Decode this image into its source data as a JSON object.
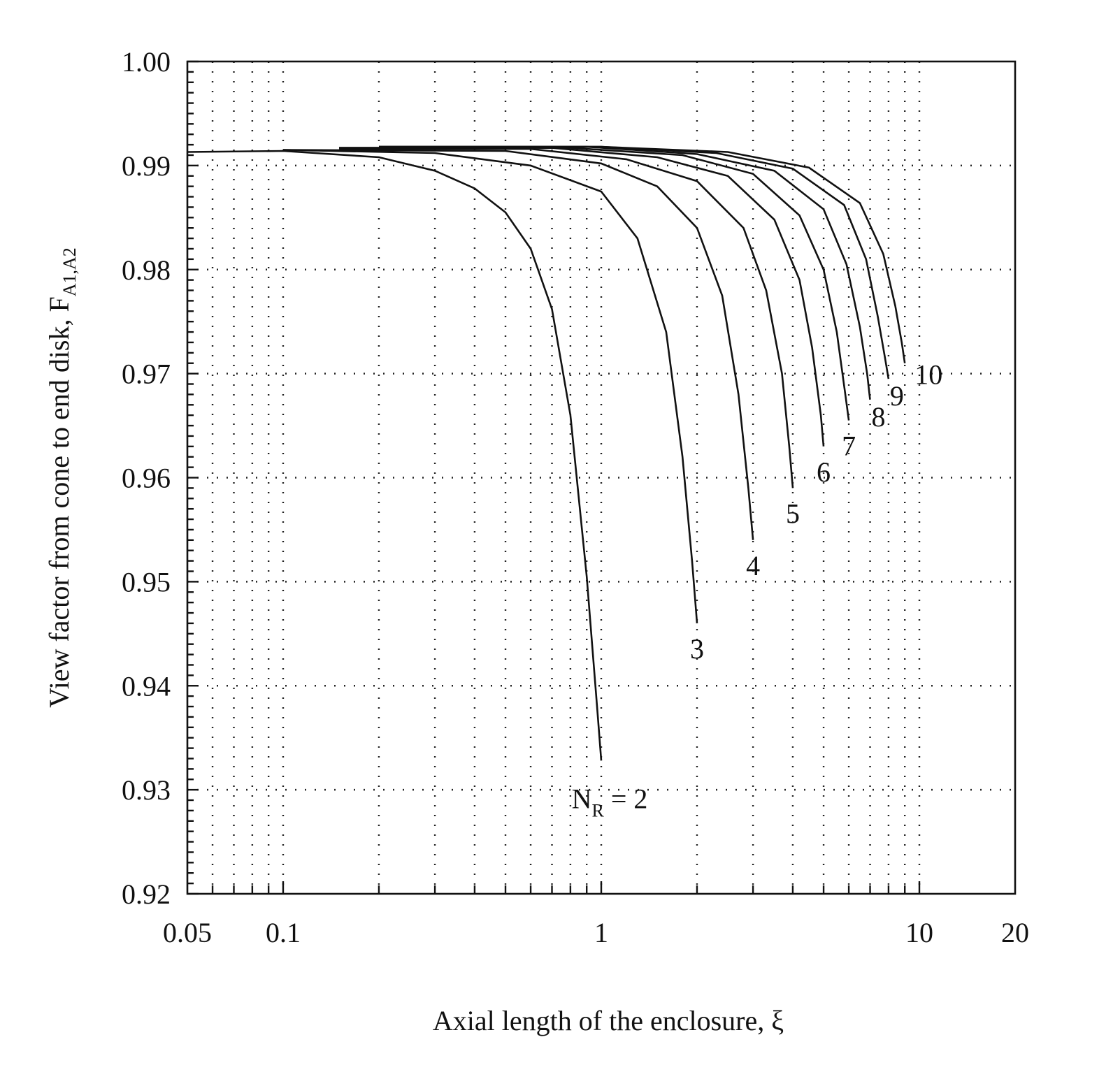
{
  "chart_data": {
    "type": "line",
    "xscale": "log",
    "xlim": [
      0.05,
      20
    ],
    "ylim": [
      0.92,
      1.0
    ],
    "grid": true,
    "xlabel": "Axial length of the enclosure, ξ",
    "ylabel": "View factor from cone to end disk, F",
    "ylabel_sub": "A1,A2",
    "x_ticks": [
      0.05,
      0.1,
      1,
      10,
      20
    ],
    "x_tick_labels": [
      "0.05",
      "0.1",
      "1",
      "10",
      "20"
    ],
    "y_ticks": [
      0.92,
      0.93,
      0.94,
      0.95,
      0.96,
      0.97,
      0.98,
      0.99,
      1.0
    ],
    "y_tick_labels": [
      "0.92",
      "0.93",
      "0.94",
      "0.95",
      "0.96",
      "0.97",
      "0.98",
      "0.99",
      "1.00"
    ],
    "series": [
      {
        "name": "N_R = 2",
        "label_text": "N",
        "label_sub": "R",
        "label_suffix": " = 2",
        "xmax": 1,
        "ymin": 0.9328,
        "points": [
          [
            0.05,
            0.9913
          ],
          [
            0.1,
            0.9914
          ],
          [
            0.2,
            0.9908
          ],
          [
            0.3,
            0.9895
          ],
          [
            0.4,
            0.9878
          ],
          [
            0.5,
            0.9855
          ],
          [
            0.6,
            0.982
          ],
          [
            0.7,
            0.9762
          ],
          [
            0.8,
            0.966
          ],
          [
            0.9,
            0.9505
          ],
          [
            0.97,
            0.938
          ],
          [
            1.0,
            0.9328
          ]
        ]
      },
      {
        "name": "3",
        "label_text": "3",
        "xmax": 2,
        "ymin": 0.946,
        "points": [
          [
            0.1,
            0.9915
          ],
          [
            0.3,
            0.9912
          ],
          [
            0.6,
            0.99
          ],
          [
            1.0,
            0.9875
          ],
          [
            1.3,
            0.983
          ],
          [
            1.6,
            0.974
          ],
          [
            1.8,
            0.962
          ],
          [
            1.93,
            0.952
          ],
          [
            2.0,
            0.946
          ]
        ]
      },
      {
        "name": "4",
        "label_text": "4",
        "xmax": 3,
        "ymin": 0.954,
        "points": [
          [
            0.1,
            0.9915
          ],
          [
            0.5,
            0.9914
          ],
          [
            1.0,
            0.9902
          ],
          [
            1.5,
            0.988
          ],
          [
            2.0,
            0.984
          ],
          [
            2.4,
            0.9775
          ],
          [
            2.7,
            0.968
          ],
          [
            2.9,
            0.959
          ],
          [
            3.0,
            0.954
          ]
        ]
      },
      {
        "name": "5",
        "label_text": "5",
        "xmax": 4,
        "ymin": 0.959,
        "points": [
          [
            0.15,
            0.9916
          ],
          [
            0.6,
            0.9916
          ],
          [
            1.2,
            0.9906
          ],
          [
            2.0,
            0.9885
          ],
          [
            2.8,
            0.984
          ],
          [
            3.3,
            0.978
          ],
          [
            3.7,
            0.97
          ],
          [
            3.9,
            0.963
          ],
          [
            4.0,
            0.959
          ]
        ]
      },
      {
        "name": "6",
        "label_text": "6",
        "xmax": 5,
        "ymin": 0.963,
        "points": [
          [
            0.15,
            0.9917
          ],
          [
            0.7,
            0.9917
          ],
          [
            1.5,
            0.9908
          ],
          [
            2.5,
            0.989
          ],
          [
            3.5,
            0.9848
          ],
          [
            4.2,
            0.979
          ],
          [
            4.6,
            0.9725
          ],
          [
            4.9,
            0.966
          ],
          [
            5.0,
            0.963
          ]
        ]
      },
      {
        "name": "7",
        "label_text": "7",
        "xmax": 6,
        "ymin": 0.9655,
        "points": [
          [
            0.15,
            0.9917
          ],
          [
            0.8,
            0.9917
          ],
          [
            1.8,
            0.991
          ],
          [
            3.0,
            0.9892
          ],
          [
            4.2,
            0.9852
          ],
          [
            5.0,
            0.98
          ],
          [
            5.5,
            0.974
          ],
          [
            5.85,
            0.968
          ],
          [
            6.0,
            0.9655
          ]
        ]
      },
      {
        "name": "8",
        "label_text": "8",
        "xmax": 7,
        "ymin": 0.9675,
        "points": [
          [
            0.2,
            0.9918
          ],
          [
            0.9,
            0.9918
          ],
          [
            2.0,
            0.9911
          ],
          [
            3.5,
            0.9895
          ],
          [
            5.0,
            0.9858
          ],
          [
            5.9,
            0.9805
          ],
          [
            6.5,
            0.9745
          ],
          [
            6.85,
            0.97
          ],
          [
            7.0,
            0.9675
          ]
        ]
      },
      {
        "name": "9",
        "label_text": "9",
        "xmax": 8,
        "ymin": 0.9695,
        "points": [
          [
            0.2,
            0.9918
          ],
          [
            1.0,
            0.9918
          ],
          [
            2.3,
            0.9912
          ],
          [
            4.0,
            0.9897
          ],
          [
            5.8,
            0.9862
          ],
          [
            6.8,
            0.981
          ],
          [
            7.4,
            0.9755
          ],
          [
            7.8,
            0.9715
          ],
          [
            8.0,
            0.9695
          ]
        ]
      },
      {
        "name": "10",
        "label_text": "10",
        "xmax": 9,
        "ymin": 0.971,
        "points": [
          [
            0.2,
            0.9918
          ],
          [
            1.0,
            0.9918
          ],
          [
            2.5,
            0.9913
          ],
          [
            4.5,
            0.9898
          ],
          [
            6.5,
            0.9864
          ],
          [
            7.7,
            0.9815
          ],
          [
            8.4,
            0.9765
          ],
          [
            8.8,
            0.973
          ],
          [
            9.0,
            0.971
          ]
        ]
      }
    ]
  }
}
